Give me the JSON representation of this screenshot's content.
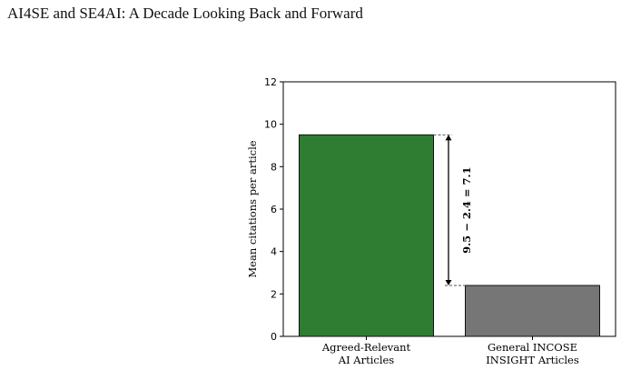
{
  "header": {
    "title": "AI4SE and SE4AI: A Decade Looking Back and Forward"
  },
  "chart_data": {
    "type": "bar",
    "categories": [
      {
        "line1": "Agreed-Relevant",
        "line2": "AI Articles"
      },
      {
        "line1": "General INCOSE",
        "line2": "INSIGHT Articles"
      }
    ],
    "values": [
      9.5,
      2.4
    ],
    "colors": [
      "#2e7d32",
      "#767676"
    ],
    "ylabel": "Mean citations per article",
    "ylim": [
      0,
      12
    ],
    "yticks": [
      0,
      2,
      4,
      6,
      8,
      10,
      12
    ],
    "annotation": {
      "text": "9.5 − 2.4 = 7.1",
      "from": 9.5,
      "to": 2.4
    },
    "grid": false
  }
}
